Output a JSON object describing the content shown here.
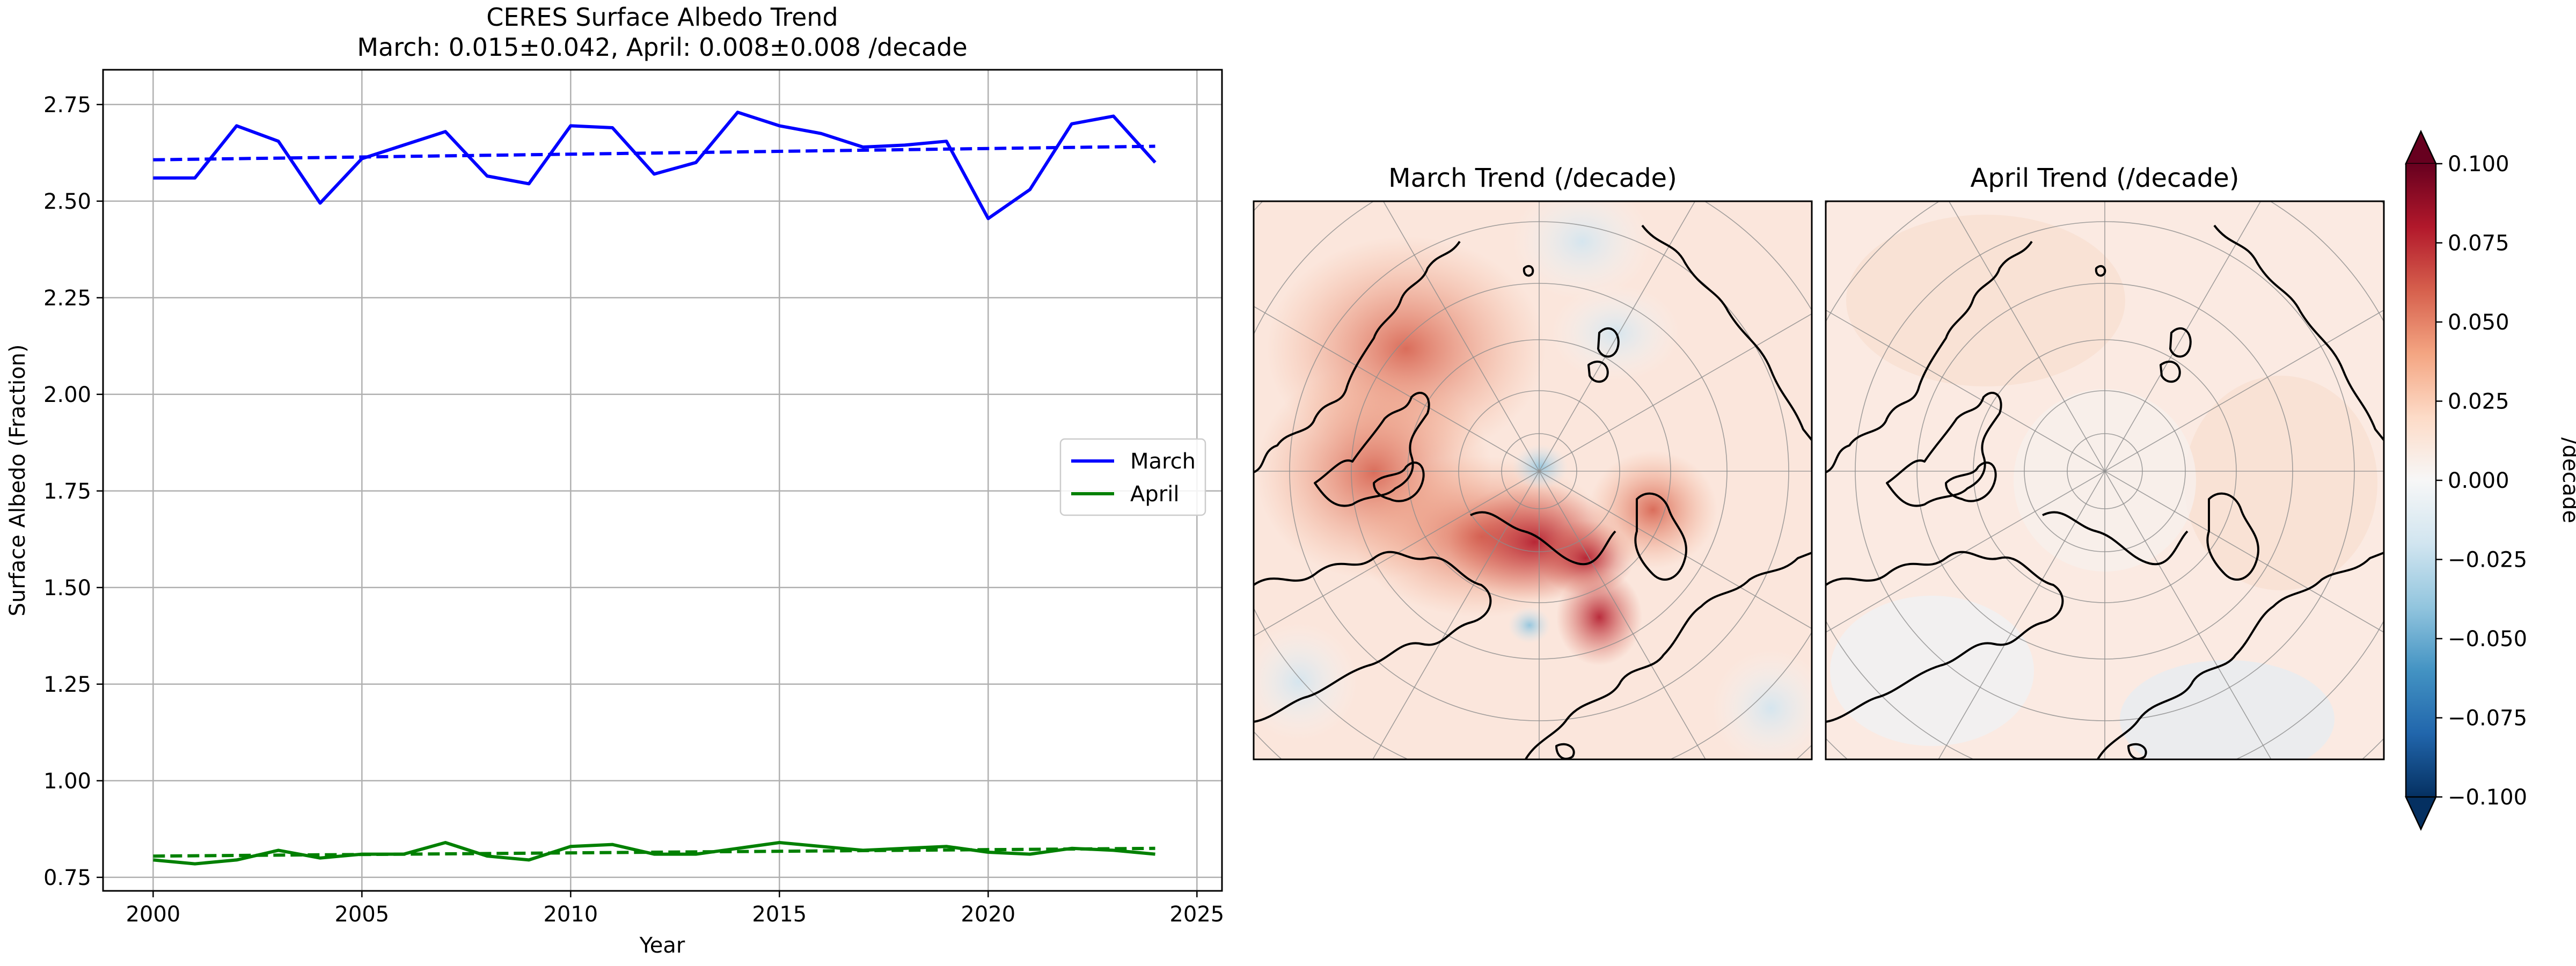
{
  "chart_data": [
    {
      "type": "line",
      "title": "CERES Surface Albedo Trend",
      "subtitle": "March: 0.015±0.042, April: 0.008±0.008 /decade",
      "xlabel": "Year",
      "ylabel": "Surface Albedo (Fraction)",
      "xlim": [
        1998.8,
        2025.6
      ],
      "ylim": [
        0.715,
        2.84
      ],
      "grid": true,
      "legend_placement": "center-right",
      "x_ticks": [
        2000,
        2005,
        2010,
        2015,
        2020,
        2025
      ],
      "x_tick_labels": [
        "2000",
        "2005",
        "2010",
        "2015",
        "2020",
        "2025"
      ],
      "y_ticks": [
        0.75,
        1.0,
        1.25,
        1.5,
        1.75,
        2.0,
        2.25,
        2.5,
        2.75
      ],
      "y_tick_labels": [
        "0.75",
        "1.00",
        "1.25",
        "1.50",
        "1.75",
        "2.00",
        "2.25",
        "2.50",
        "2.75"
      ],
      "x": [
        2000,
        2001,
        2002,
        2003,
        2004,
        2005,
        2006,
        2007,
        2008,
        2009,
        2010,
        2011,
        2012,
        2013,
        2014,
        2015,
        2016,
        2017,
        2018,
        2019,
        2020,
        2021,
        2022,
        2023,
        2024
      ],
      "series": [
        {
          "name": "March",
          "color": "#0000ff",
          "values": [
            2.56,
            2.56,
            2.695,
            2.655,
            2.495,
            2.61,
            2.645,
            2.68,
            2.565,
            2.545,
            2.695,
            2.69,
            2.57,
            2.6,
            2.73,
            2.695,
            2.675,
            2.64,
            2.645,
            2.655,
            2.455,
            2.53,
            2.7,
            2.72,
            2.6
          ],
          "trend": [
            2.607,
            2.642
          ]
        },
        {
          "name": "April",
          "color": "#008000",
          "values": [
            0.795,
            0.785,
            0.795,
            0.82,
            0.8,
            0.81,
            0.81,
            0.84,
            0.805,
            0.795,
            0.83,
            0.835,
            0.81,
            0.81,
            0.825,
            0.84,
            0.83,
            0.82,
            0.825,
            0.83,
            0.815,
            0.81,
            0.825,
            0.82,
            0.81
          ],
          "trend": [
            0.805,
            0.825
          ]
        }
      ]
    },
    {
      "type": "heatmap",
      "title": "March Trend (/decade)",
      "projection": "north-polar-stereographic",
      "value_range": [
        -0.1,
        0.1
      ]
    },
    {
      "type": "heatmap",
      "title": "April Trend (/decade)",
      "projection": "north-polar-stereographic",
      "value_range": [
        -0.1,
        0.1
      ]
    }
  ],
  "colorbar": {
    "label": "/decade",
    "colormap": "RdBu_r",
    "range": [
      -0.1,
      0.1
    ],
    "ticks": [
      0.1,
      0.075,
      0.05,
      0.025,
      0.0,
      -0.025,
      -0.05,
      -0.075,
      -0.1
    ],
    "tick_labels": [
      "0.100",
      "0.075",
      "0.050",
      "0.025",
      "0.000",
      "−0.025",
      "−0.050",
      "−0.075",
      "−0.100"
    ],
    "colors": [
      "#053061",
      "#2166ac",
      "#4393c3",
      "#92c5de",
      "#d1e5f0",
      "#f7f7f7",
      "#fddbc7",
      "#f4a582",
      "#d6604d",
      "#b2182b",
      "#67001f"
    ]
  }
}
